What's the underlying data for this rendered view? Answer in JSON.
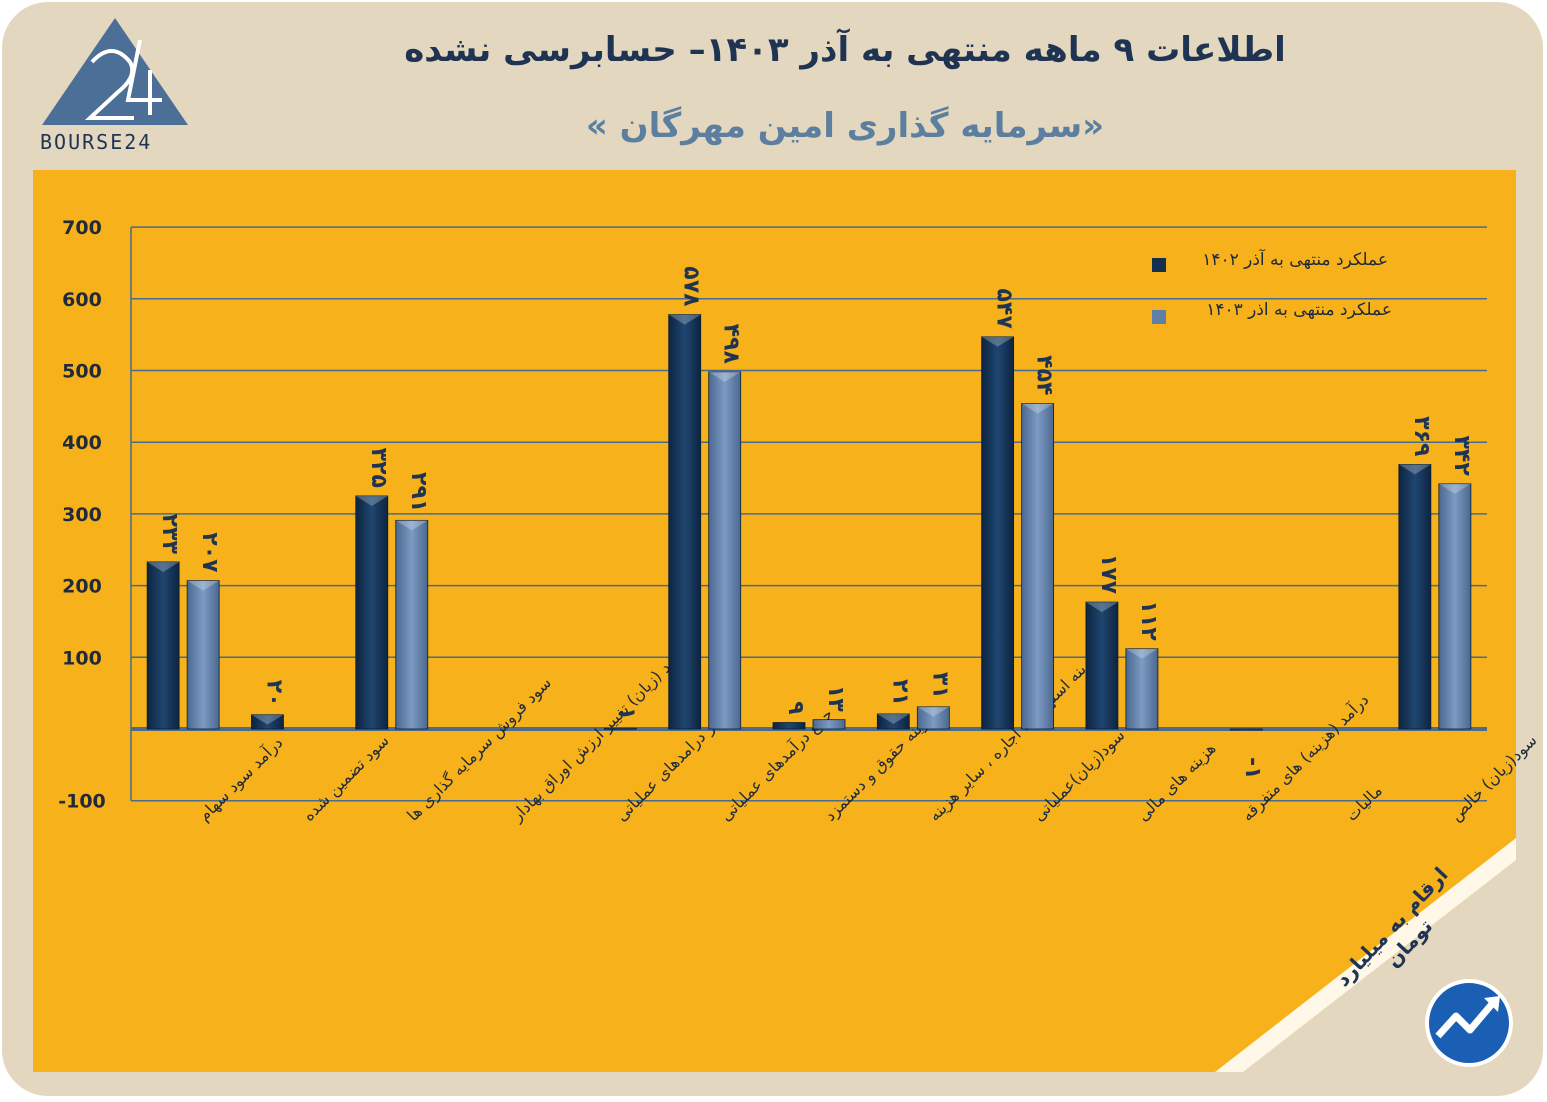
{
  "title": "اطلاعات ۹ ماهه منتهی به آذر ۱۴۰۳– حسابرسی نشده",
  "subtitle": "«سرمایه گذاری امین مهرگان »",
  "logo_text": "BOURSE24",
  "unit_note": "ارقام به میلیارد تومان",
  "colors": {
    "background": "#e3d8bf",
    "panel": "#f7b11b",
    "series_1402": "#14304f",
    "series_1403": "#5d7fa8",
    "title": "#1f3352"
  },
  "chart_data": {
    "type": "bar",
    "ylim": [
      -100,
      700
    ],
    "yticks": [
      -100,
      0,
      100,
      200,
      300,
      400,
      500,
      600,
      700
    ],
    "ytick_labels": [
      "-100",
      "",
      "100",
      "200",
      "300",
      "400",
      "500",
      "600",
      "700"
    ],
    "grid": true,
    "legend_position": "top-right",
    "categories": [
      "درآمد سود سهام",
      "سود تضمین شده",
      "سود فروش سرمایه گذاری ها",
      "سود (زیان) تغییر ارزش اوراق بهادار",
      "سایر درامدهای عملیاتی",
      "جمع درآمدهای عملیاتی",
      "هزینه حقوق و دستمزد",
      "هزینه استهلاک ، اجاره ، سایر هزینه",
      "سود(زیان)عملیاتی",
      "هزینه های مالی",
      "درآمد (هزینه) های متفرقه",
      "مالیات",
      "سود(زیان) خالص"
    ],
    "series": [
      {
        "name": "عملکرد منتهی به آذر ۱۴۰۲",
        "values": [
          233,
          20,
          325,
          null,
          null,
          578,
          9,
          21,
          547,
          177,
          null,
          null,
          369
        ],
        "labels": [
          "۲۳۳",
          "۲۰",
          "۳۲۵",
          "",
          "",
          "۵۷۸",
          "۹",
          "۲۱",
          "۵۴۷",
          "۱۷۷",
          "",
          "",
          "۳۶۹"
        ]
      },
      {
        "name": "عملکرد منتهی به اذر ۱۴۰۳",
        "values": [
          207,
          null,
          291,
          null,
          1,
          498,
          13,
          31,
          454,
          112,
          -1,
          null,
          342
        ],
        "labels": [
          "۲۰۷",
          "",
          "۲۹۱",
          "",
          "۱",
          "۴۹۸",
          "۱۳",
          "۳۱",
          "۴۵۴",
          "۱۱۲",
          "-۱",
          "",
          "۳۴۲"
        ]
      }
    ]
  }
}
